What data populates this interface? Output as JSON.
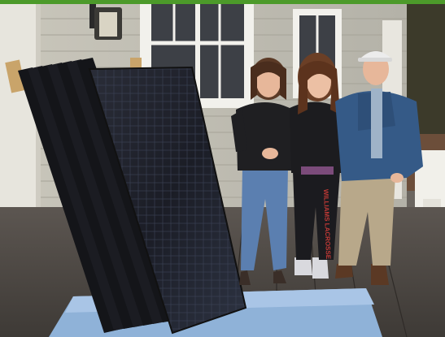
{
  "photo": {
    "subject": "three people standing beside solar panels",
    "accent_color": "#4c9a2a",
    "icons": [
      "wall-lantern-icon",
      "solar-panel-icon"
    ]
  },
  "people": [
    {
      "shirt_color": "#1f1f22",
      "pants_color": "#5b7fb0"
    },
    {
      "shirt_color": "#1c1c1f",
      "pants_color": "#1b1b1f",
      "pants_text": "WILLIAMS LACROSSE"
    },
    {
      "shirt_color": "#355a87",
      "pants_color": "#b8a88a"
    }
  ]
}
